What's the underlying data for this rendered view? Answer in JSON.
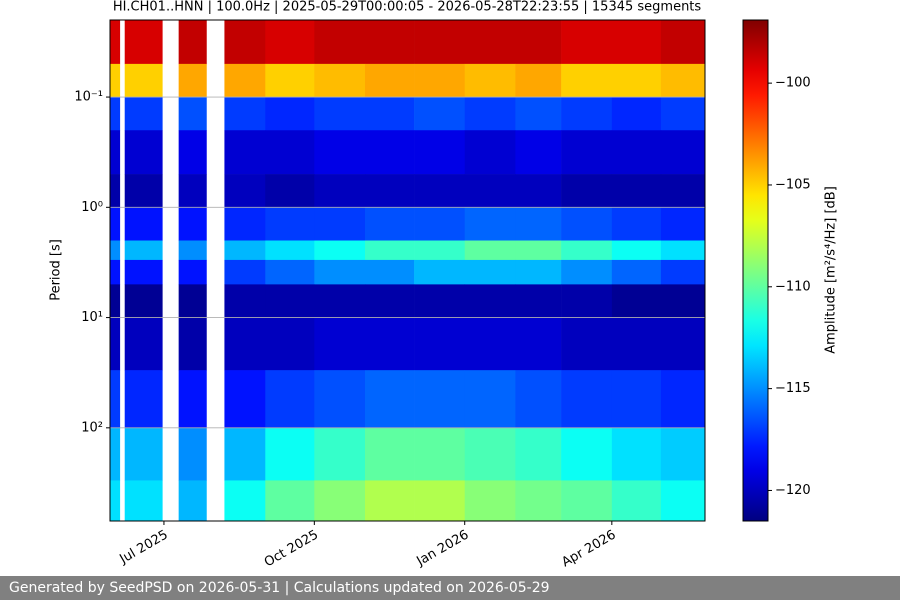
{
  "chart_data": {
    "type": "heatmap",
    "title": "HI.CH01..HNN | 100.0Hz | 2025-05-29T00:00:05 - 2026-05-28T22:23:55 | 15345 segments",
    "y_label": "Period [s]",
    "colorbar_label": "Amplitude [m²/s⁴/Hz] [dB]",
    "colormap": "jet",
    "log_y": true,
    "y_inverted": true,
    "grid": true,
    "xlim": [
      "2025-05-29",
      "2026-05-28"
    ],
    "xticks": [
      {
        "value": "2025-07-01",
        "label": "Jul 2025"
      },
      {
        "value": "2025-10-01",
        "label": "Oct 2025"
      },
      {
        "value": "2026-01-01",
        "label": "Jan 2026"
      },
      {
        "value": "2026-04-01",
        "label": "Apr 2026"
      }
    ],
    "ylim": [
      0.02,
      700
    ],
    "yticks": [
      {
        "value": 0.1,
        "label": "10⁻¹"
      },
      {
        "value": 1,
        "label": "10⁰"
      },
      {
        "value": 10,
        "label": "10¹"
      },
      {
        "value": 100,
        "label": "10²"
      }
    ],
    "clim": [
      -121.5,
      -96.9
    ],
    "cticks": [
      {
        "value": -120,
        "label": "−120"
      },
      {
        "value": -115,
        "label": "−115"
      },
      {
        "value": -110,
        "label": "−110"
      },
      {
        "value": -105,
        "label": "−105"
      },
      {
        "value": -100,
        "label": "−100"
      }
    ],
    "x_edges": [
      "2025-05-29",
      "2025-06-04",
      "2025-06-07",
      "2025-06-30",
      "2025-07-10",
      "2025-07-27",
      "2025-08-07",
      "2025-09-01",
      "2025-10-01",
      "2025-11-01",
      "2025-12-01",
      "2026-01-01",
      "2026-02-01",
      "2026-03-01",
      "2026-04-01",
      "2026-05-01",
      "2026-05-28"
    ],
    "y_edges": [
      0.02,
      0.05,
      0.1,
      0.2,
      0.5,
      1,
      2,
      3,
      5,
      10,
      30,
      100,
      300,
      700
    ],
    "values": [
      [
        -99,
        null,
        -99,
        null,
        -98.5,
        null,
        -98.5,
        -99,
        -98.5,
        -98.5,
        -98.5,
        -98.5,
        -98.5,
        -99,
        -99,
        -98.5
      ],
      [
        -105,
        null,
        -105,
        null,
        -104,
        null,
        -104,
        -105,
        -104.5,
        -104,
        -104,
        -104.5,
        -104,
        -105,
        -105,
        -104.5
      ],
      [
        -117,
        null,
        -117,
        null,
        -116.5,
        null,
        -117,
        -117.5,
        -117,
        -117,
        -116.5,
        -117,
        -116.5,
        -117,
        -117.5,
        -117
      ],
      [
        -119.5,
        null,
        -119.5,
        null,
        -119,
        null,
        -119.5,
        -119.5,
        -119,
        -119,
        -119,
        -119.5,
        -119,
        -119.5,
        -119.5,
        -119.5
      ],
      [
        -120.5,
        null,
        -120.5,
        null,
        -120,
        null,
        -120,
        -120.5,
        -120,
        -120,
        -120,
        -120,
        -120,
        -120.5,
        -120.5,
        -120.5
      ],
      [
        -118,
        null,
        -118,
        null,
        -118,
        null,
        -117.5,
        -117,
        -117,
        -116.5,
        -116.5,
        -116,
        -116,
        -116.5,
        -117,
        -117.5
      ],
      [
        -115,
        null,
        -114,
        null,
        -115,
        null,
        -114,
        -113,
        -112,
        -111,
        -111,
        -110,
        -110,
        -111,
        -112,
        -113
      ],
      [
        -118,
        null,
        -118,
        null,
        -118,
        null,
        -117,
        -116,
        -115,
        -115,
        -114,
        -114,
        -114,
        -115,
        -116,
        -117
      ],
      [
        -121,
        null,
        -121,
        null,
        -121,
        null,
        -120.5,
        -120.5,
        -120.5,
        -120.5,
        -120.5,
        -120.5,
        -120.5,
        -120.5,
        -121,
        -121
      ],
      [
        -120,
        null,
        -120,
        null,
        -120.5,
        null,
        -120,
        -120,
        -119.5,
        -119.5,
        -119.5,
        -119.5,
        -119.5,
        -120,
        -120,
        -120
      ],
      [
        -117,
        null,
        -117.5,
        null,
        -118,
        null,
        -118,
        -117,
        -116.5,
        -116,
        -116,
        -116,
        -116.5,
        -117,
        -117,
        -117.5
      ],
      [
        -114,
        null,
        -114,
        null,
        -115,
        null,
        -114,
        -112,
        -111,
        -110,
        -110,
        -110.5,
        -111,
        -112,
        -113,
        -113.5
      ],
      [
        -113,
        null,
        -113,
        null,
        -114,
        null,
        -112,
        -110,
        -109,
        -108,
        -108,
        -109,
        -109.5,
        -110,
        -111,
        -112
      ]
    ],
    "footer": "Generated by SeedPSD on 2026-05-31 | Calculations updated on 2026-05-29"
  }
}
